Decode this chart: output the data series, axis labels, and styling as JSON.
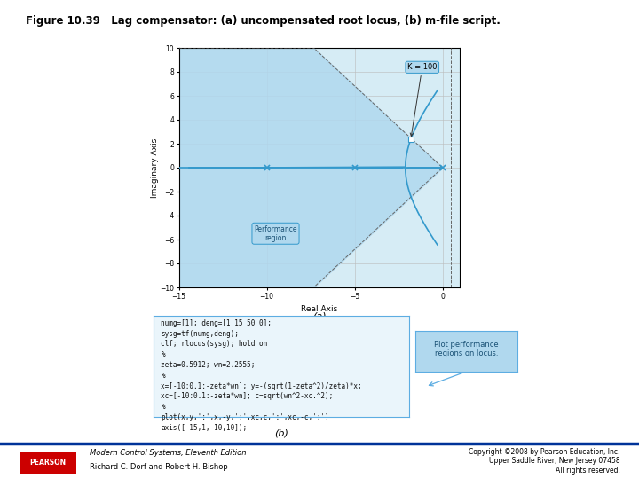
{
  "title": "Figure 10.39   Lag compensator: (a) uncompensated root locus, (b) m-file script.",
  "title_fontsize": 8.5,
  "title_fontweight": "bold",
  "fig_bg": "#ffffff",
  "subplot_a_label": "(a)",
  "subplot_b_label": "(b)",
  "plot_bg": "#d6ecf5",
  "axis_xlim": [
    -15,
    1
  ],
  "axis_ylim": [
    -10,
    10
  ],
  "xticks": [
    -15,
    -10,
    -5,
    0
  ],
  "yticks": [
    -10,
    -8,
    -6,
    -4,
    -2,
    0,
    2,
    4,
    6,
    8,
    10
  ],
  "xlabel": "Real Axis",
  "ylabel": "Imaginary Axis",
  "grid_color": "#bbbbbb",
  "root_locus_color": "#3399cc",
  "root_locus_lw": 1.2,
  "perf_region_fill": "#b0d8ee",
  "dashed_line_color": "#666666",
  "K100_label": "K = 100",
  "K100_box_color": "#b0d8ee",
  "K100_box_edge": "#3399cc",
  "marker_square_color": "#ffffff",
  "marker_square_edge": "#3399cc",
  "zeta": 0.5912,
  "wn": 2.2555,
  "code_lines": [
    "numg=[1]; deng=[1 15 50 0];",
    "sysg=tf(numg,deng);",
    "clf; rlocus(sysg); hold on",
    "%",
    "zeta=0.5912; wn=2.2555;",
    "%",
    "x=[-10:0.1:-zeta*wn]; y=-(sqrt(1-zeta^2)/zeta)*x;",
    "xc=[-10:0.1:-zeta*wn]; c=sqrt(wn^2-xc.^2);",
    "%",
    "plot(x,y,':',x,-y,':',xc,c,':',xc,-c,':')",
    "axis([-15,1,-10,10]);"
  ],
  "code_box_color": "#eaf5fb",
  "code_box_edge": "#5dade2",
  "annotation_text": "Plot performance\nregions on locus.",
  "annotation_box_color": "#b0d8ee",
  "annotation_box_edge": "#5dade2",
  "pearson_red": "#cc0000",
  "pearson_blue": "#003399",
  "footer_sep_color": "#003399",
  "footer_text1": "Modern Control Systems, Eleventh Edition",
  "footer_text2": "Richard C. Dorf and Robert H. Bishop",
  "footer_text3": "Copyright ©2008 by Pearson Education, Inc.\nUpper Saddle River, New Jersey 07458\nAll rights reserved.",
  "perf_text": "Performance\nregion",
  "perf_text_color": "#1a5276"
}
